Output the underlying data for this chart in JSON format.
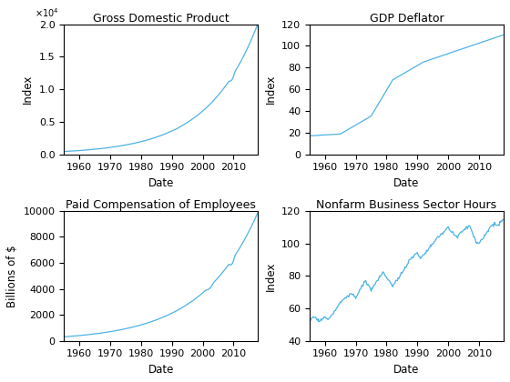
{
  "titles": [
    "Gross Domestic Product",
    "GDP Deflator",
    "Paid Compensation of Employees",
    "Nonfarm Business Sector Hours"
  ],
  "xlabels": [
    "Date",
    "Date",
    "Date",
    "Date"
  ],
  "ylabels": [
    "Index",
    "Index",
    "Billions of $",
    "Index"
  ],
  "line_color": "#4db3e6",
  "background_color": "#ffffff",
  "title_fontsize": 9,
  "label_fontsize": 8.5,
  "tick_fontsize": 8,
  "xticks": [
    1960,
    1970,
    1980,
    1990,
    2000,
    2010
  ],
  "gdp_ylim": [
    0,
    2.0
  ],
  "deflator_ylim": [
    0,
    120
  ],
  "comp_ylim": [
    0,
    10000
  ],
  "hours_ylim": [
    40,
    120
  ],
  "xlim": [
    1955,
    2018
  ]
}
